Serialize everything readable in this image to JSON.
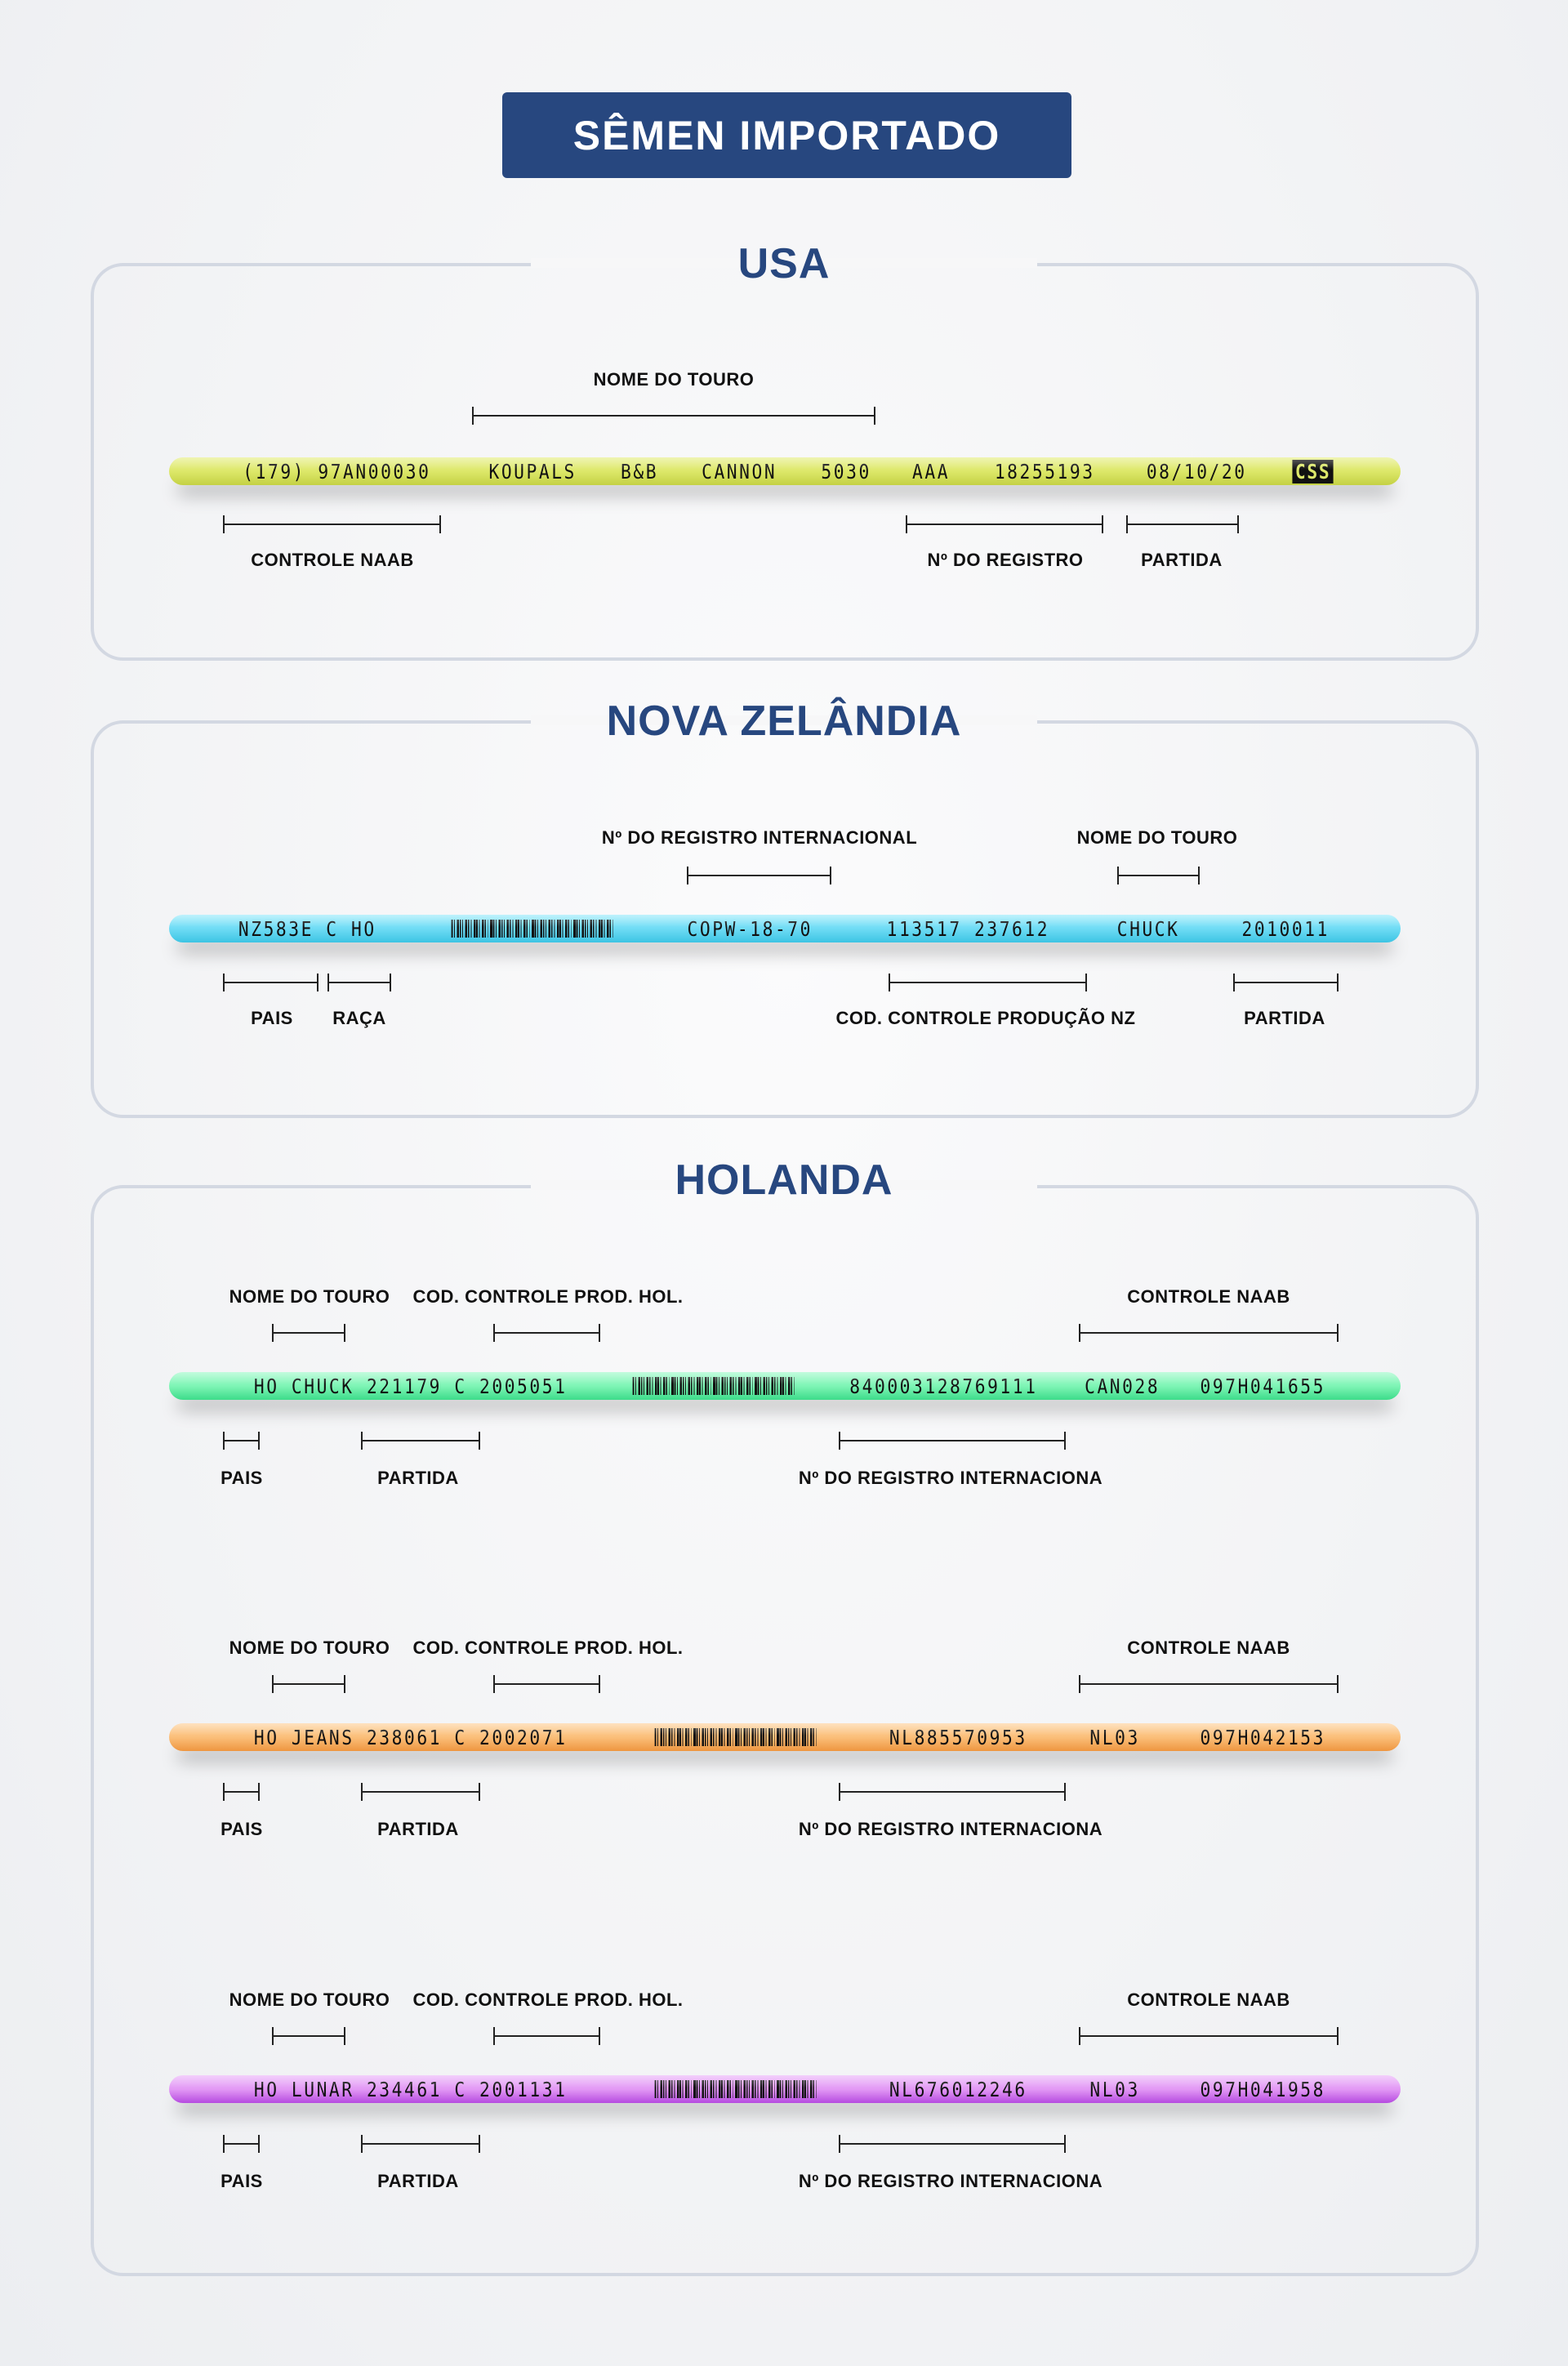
{
  "title": "SÊMEN IMPORTADO",
  "usa": {
    "title": "USA",
    "straw": [
      "(179) 97AN00030",
      "KOUPALS",
      "B&B",
      "CANNON",
      "5030",
      "AAA",
      "18255193",
      "08/10/20"
    ],
    "badge": "CSS",
    "labels": {
      "bull_name": "NOME  DO TOURO",
      "naab": "CONTROLE NAAB",
      "registry": "Nº DO REGISTRO",
      "batch": "PARTIDA"
    },
    "color": "#dde86a"
  },
  "nz": {
    "title": "NOVA ZELÂNDIA",
    "straw": [
      "NZ583E C HO",
      "COPW-18-70",
      "113517 237612",
      "CHUCK",
      "2010011"
    ],
    "labels": {
      "intl_registry": "Nº DO REGISTRO INTERNACIONAL",
      "bull_name": "NOME  DO TOURO",
      "country": "PAIS",
      "breed": "RAÇA",
      "prod_code": "COD. CONTROLE PRODUÇÃO NZ",
      "batch": "PARTIDA"
    },
    "color": "#7fe3f7"
  },
  "holland": {
    "title": "HOLANDA",
    "labels": {
      "bull_name": "NOME DO TOURO",
      "prod_code": "COD. CONTROLE PROD. HOL.",
      "naab": "CONTROLE NAAB",
      "country": "PAIS",
      "batch": "PARTIDA",
      "intl_registry": "Nº DO REGISTRO INTERNACIONA"
    },
    "straws": [
      {
        "left": "HO CHUCK 221179 C 2005051",
        "right": [
          "840003128769111",
          "CAN028",
          "097H041655"
        ],
        "color": "#7ff5b6"
      },
      {
        "left": "HO JEANS 238061 C 2002071",
        "right": [
          "NL885570953",
          "NL03",
          "097H042153"
        ],
        "color": "#fbbf7a"
      },
      {
        "left": "HO LUNAR 234461 C 2001131",
        "right": [
          "NL676012246",
          "NL03",
          "097H041958"
        ],
        "color": "#e39af5"
      }
    ]
  }
}
